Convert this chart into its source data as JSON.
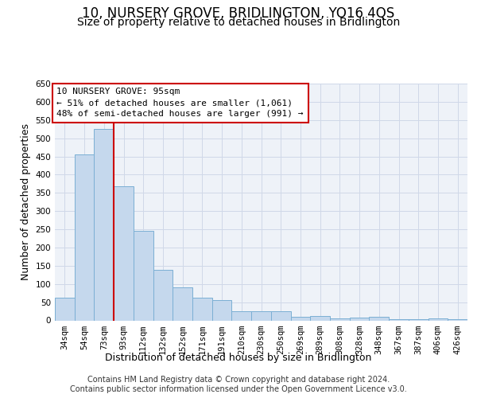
{
  "title": "10, NURSERY GROVE, BRIDLINGTON, YO16 4QS",
  "subtitle": "Size of property relative to detached houses in Bridlington",
  "xlabel": "Distribution of detached houses by size in Bridlington",
  "ylabel": "Number of detached properties",
  "categories": [
    "34sqm",
    "54sqm",
    "73sqm",
    "93sqm",
    "112sqm",
    "132sqm",
    "152sqm",
    "171sqm",
    "191sqm",
    "210sqm",
    "230sqm",
    "250sqm",
    "269sqm",
    "289sqm",
    "308sqm",
    "328sqm",
    "348sqm",
    "367sqm",
    "387sqm",
    "406sqm",
    "426sqm"
  ],
  "values": [
    62,
    455,
    525,
    368,
    245,
    138,
    90,
    62,
    55,
    25,
    25,
    25,
    10,
    12,
    6,
    8,
    10,
    3,
    3,
    5,
    3
  ],
  "bar_color": "#c5d8ed",
  "bar_edge_color": "#7bafd4",
  "grid_color": "#d0d8e8",
  "background_color": "#eef2f8",
  "vline_x": 2.5,
  "vline_color": "#cc0000",
  "annotation_text": "10 NURSERY GROVE: 95sqm\n← 51% of detached houses are smaller (1,061)\n48% of semi-detached houses are larger (991) →",
  "annotation_box_color": "#ffffff",
  "annotation_box_edge": "#cc0000",
  "ylim": [
    0,
    650
  ],
  "yticks": [
    0,
    50,
    100,
    150,
    200,
    250,
    300,
    350,
    400,
    450,
    500,
    550,
    600,
    650
  ],
  "footer": "Contains HM Land Registry data © Crown copyright and database right 2024.\nContains public sector information licensed under the Open Government Licence v3.0.",
  "title_fontsize": 12,
  "subtitle_fontsize": 10,
  "axis_label_fontsize": 9,
  "tick_fontsize": 7.5,
  "annotation_fontsize": 8,
  "footer_fontsize": 7
}
